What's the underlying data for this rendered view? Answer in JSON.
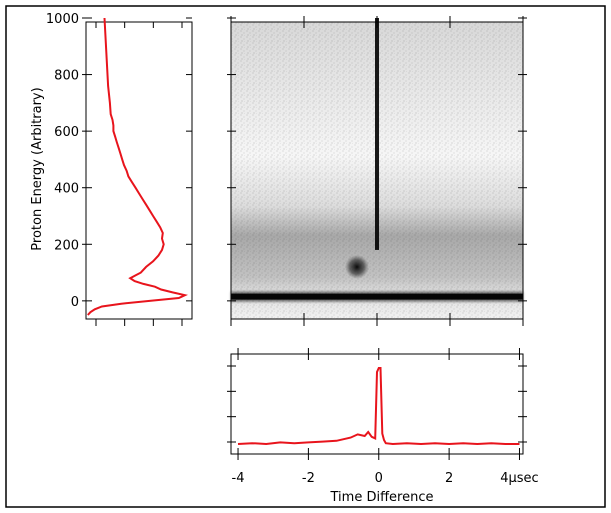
{
  "chart_data": [
    {
      "type": "line",
      "panel": "left-projection",
      "ylabel": "Proton Energy (Arbitrary)",
      "ylim": [
        -50,
        1000
      ],
      "xlim": [
        0,
        1.2
      ],
      "yticks": [
        0,
        200,
        400,
        600,
        800,
        1000
      ],
      "ytick_labels": [
        "0",
        "200",
        "400",
        "600",
        "800",
        "1000"
      ],
      "x_tick_count": 4,
      "orientation": "horizontal-profile",
      "line_color": "#e8141c",
      "series": [
        {
          "energy": [
            -50,
            -40,
            -30,
            -20,
            -10,
            0,
            10,
            20,
            30,
            40,
            50,
            60,
            70,
            80,
            90,
            100,
            120,
            140,
            160,
            180,
            200,
            220,
            240,
            260,
            280,
            300,
            320,
            340,
            360,
            380,
            400,
            420,
            440,
            460,
            480,
            500,
            520,
            540,
            560,
            580,
            600,
            620,
            640,
            660,
            700,
            760,
            820,
            880,
            940,
            1000
          ],
          "counts": [
            0.02,
            0.05,
            0.1,
            0.18,
            0.4,
            0.72,
            1.05,
            1.12,
            0.98,
            0.85,
            0.78,
            0.65,
            0.55,
            0.5,
            0.56,
            0.62,
            0.68,
            0.76,
            0.82,
            0.86,
            0.88,
            0.86,
            0.87,
            0.84,
            0.8,
            0.76,
            0.72,
            0.68,
            0.64,
            0.6,
            0.56,
            0.52,
            0.48,
            0.46,
            0.43,
            0.41,
            0.39,
            0.37,
            0.35,
            0.33,
            0.31,
            0.31,
            0.3,
            0.28,
            0.27,
            0.25,
            0.24,
            0.23,
            0.22,
            0.21
          ]
        }
      ]
    },
    {
      "type": "heatmap",
      "panel": "main-2d-histogram",
      "xlim": [
        -4,
        4
      ],
      "ylim": [
        -50,
        1000
      ],
      "colormap": "white-to-black",
      "features": [
        {
          "kind": "horizontal-band",
          "energy": 15,
          "intensity": 0.95
        },
        {
          "kind": "vertical-line",
          "time": 0,
          "energy_from": 180,
          "energy_to": 1000,
          "intensity": 0.9
        },
        {
          "kind": "blob",
          "time": -0.55,
          "energy": 120,
          "intensity": 0.9
        },
        {
          "kind": "diffuse-band",
          "energy_from": 80,
          "energy_to": 280,
          "intensity": 0.35
        }
      ]
    },
    {
      "type": "line",
      "panel": "bottom-projection",
      "xlabel": "Time Difference",
      "xlim": [
        -4.2,
        4.1
      ],
      "xticks": [
        -4,
        -2,
        0,
        2,
        4
      ],
      "xtick_labels": [
        "-4",
        "-2",
        "0",
        "2",
        "4µsec"
      ],
      "y_tick_count": 4,
      "ylim": [
        0,
        1.1
      ],
      "line_color": "#e8141c",
      "series": [
        {
          "time": [
            -4.0,
            -3.6,
            -3.2,
            -2.8,
            -2.4,
            -2.0,
            -1.6,
            -1.2,
            -0.8,
            -0.6,
            -0.4,
            -0.3,
            -0.2,
            -0.1,
            -0.05,
            0.0,
            0.05,
            0.1,
            0.15,
            0.2,
            0.4,
            0.8,
            1.2,
            1.6,
            2.0,
            2.4,
            2.8,
            3.2,
            3.6,
            4.0
          ],
          "counts": [
            0.05,
            0.06,
            0.05,
            0.07,
            0.06,
            0.07,
            0.08,
            0.09,
            0.13,
            0.17,
            0.15,
            0.2,
            0.14,
            0.12,
            0.95,
            1.0,
            1.0,
            0.18,
            0.1,
            0.06,
            0.05,
            0.06,
            0.05,
            0.06,
            0.05,
            0.06,
            0.05,
            0.06,
            0.05,
            0.05
          ]
        }
      ]
    }
  ]
}
